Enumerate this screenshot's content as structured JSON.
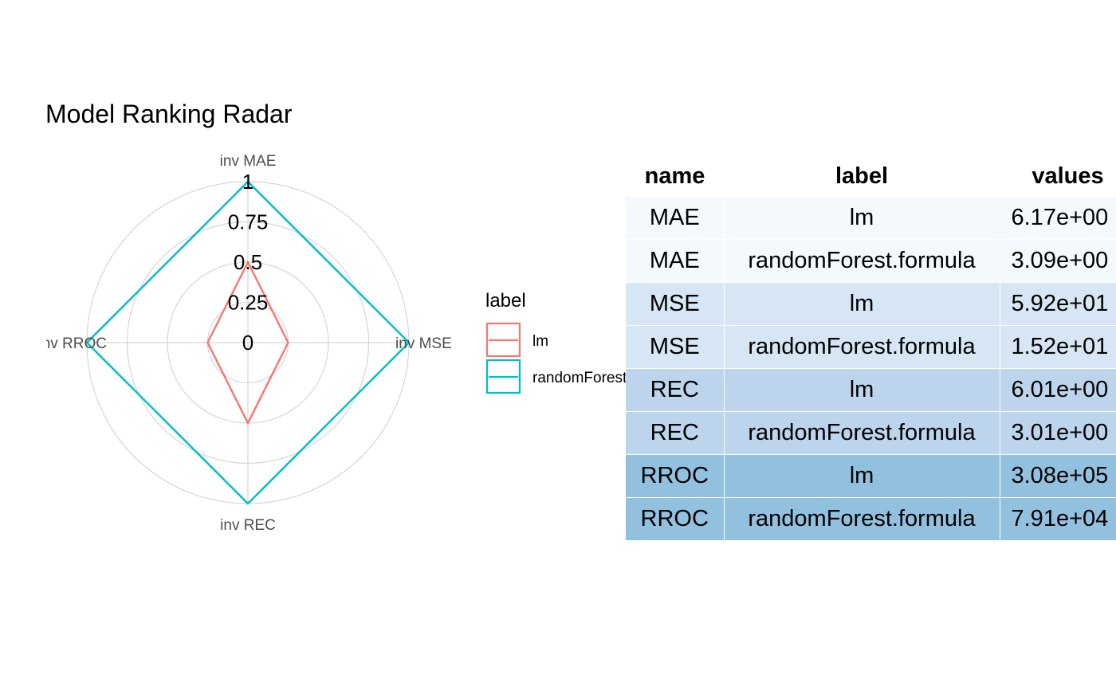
{
  "chart_data": [
    {
      "type": "radar",
      "title": "Model Ranking Radar",
      "axes": [
        "inv MAE",
        "inv MSE",
        "inv REC",
        "inv RROC"
      ],
      "radial_ticks": [
        "0",
        "0.25",
        "0.5",
        "0.75",
        "1"
      ],
      "radial_tick_values": [
        0,
        0.25,
        0.5,
        0.75,
        1
      ],
      "rlim": [
        0,
        1
      ],
      "grid": true,
      "legend": {
        "title": "label",
        "position": "right",
        "entries": [
          "lm",
          "randomForest.formula"
        ]
      },
      "series": [
        {
          "name": "lm",
          "color": "#F8766D",
          "values": [
            0.5,
            0.25,
            0.5,
            0.25
          ]
        },
        {
          "name": "randomForest.formula",
          "color": "#00BFC4",
          "values": [
            1,
            1,
            1,
            1
          ]
        }
      ]
    },
    {
      "type": "table",
      "columns": [
        "name",
        "label",
        "values"
      ],
      "rows": [
        {
          "name": "MAE",
          "label": "lm",
          "values": "6.17e+00",
          "bg": "#f4f9fe"
        },
        {
          "name": "MAE",
          "label": "randomForest.formula",
          "values": "3.09e+00",
          "bg": "#f4f9fe"
        },
        {
          "name": "MSE",
          "label": "lm",
          "values": "5.92e+01",
          "bg": "#d6e6f4"
        },
        {
          "name": "MSE",
          "label": "randomForest.formula",
          "values": "1.52e+01",
          "bg": "#d6e6f4"
        },
        {
          "name": "REC",
          "label": "lm",
          "values": "6.01e+00",
          "bg": "#bcd5ec"
        },
        {
          "name": "REC",
          "label": "randomForest.formula",
          "values": "3.01e+00",
          "bg": "#bcd5ec"
        },
        {
          "name": "RROC",
          "label": "lm",
          "values": "3.08e+05",
          "bg": "#92c1df"
        },
        {
          "name": "RROC",
          "label": "randomForest.formula",
          "values": "7.91e+04",
          "bg": "#92c1df"
        }
      ]
    }
  ]
}
